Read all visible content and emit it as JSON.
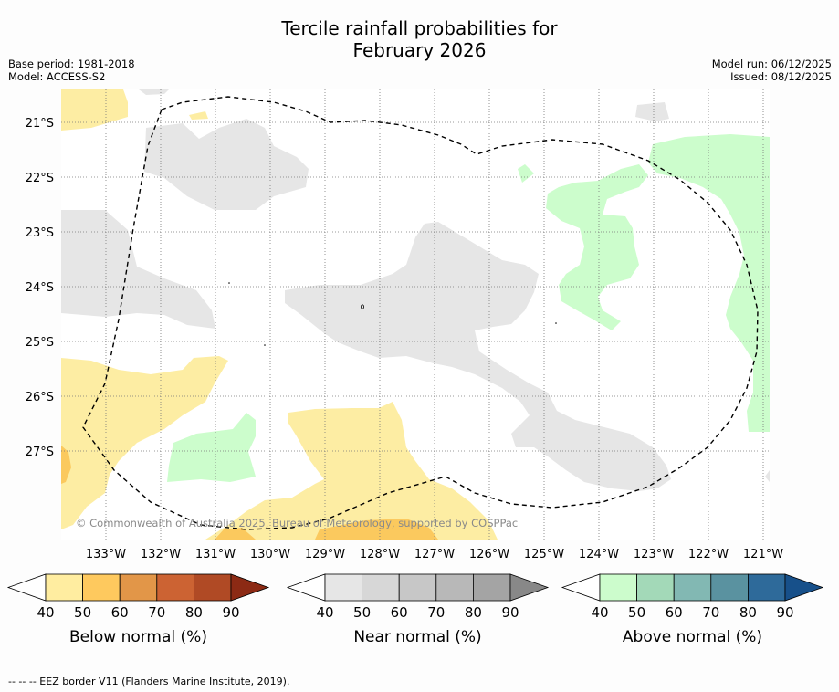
{
  "header": {
    "title_line1": "Tercile rainfall probabilities for",
    "title_line2": "February 2026",
    "base_period": "Base period: 1981-2018",
    "model": "Model: ACCESS-S2",
    "model_run": "Model run: 06/12/2025",
    "issued": "Issued: 08/12/2025"
  },
  "map": {
    "copyright": "© Commonwealth of Australia 2025, Bureau of Meteorology, supported by COSPPac",
    "lat_labels": [
      "21°S",
      "22°S",
      "23°S",
      "24°S",
      "25°S",
      "26°S",
      "27°S"
    ],
    "lon_labels": [
      "133°W",
      "132°W",
      "131°W",
      "130°W",
      "129°W",
      "128°W",
      "127°W",
      "126°W",
      "125°W",
      "124°W",
      "123°W",
      "122°W",
      "121°W"
    ],
    "colors": {
      "below": "#fdeda3",
      "below_dark": "#fbc95e",
      "near": "#e6e6e6",
      "above": "#ccfdcc",
      "eez": "#000000"
    }
  },
  "colorbars": [
    {
      "label": "Below normal (%)",
      "ticks": [
        "40",
        "50",
        "60",
        "70",
        "80",
        "90"
      ],
      "colors": [
        "#ffffff",
        "#ffeda0",
        "#fec95e",
        "#e29648",
        "#cc6333",
        "#b04a25",
        "#8c2a14"
      ]
    },
    {
      "label": "Near normal (%)",
      "ticks": [
        "40",
        "50",
        "60",
        "70",
        "80",
        "90"
      ],
      "colors": [
        "#ffffff",
        "#e6e6e6",
        "#d7d7d7",
        "#c7c7c7",
        "#b8b8b8",
        "#a4a4a4",
        "#888888"
      ]
    },
    {
      "label": "Above normal (%)",
      "ticks": [
        "40",
        "50",
        "60",
        "70",
        "80",
        "90"
      ],
      "colors": [
        "#ffffff",
        "#ccfccc",
        "#a3d9b8",
        "#82b8b3",
        "#5a92a0",
        "#2e6a9a",
        "#17508a"
      ]
    }
  ],
  "footnote": "--  --  -- EEZ border V11 (Flanders Marine Institute, 2019)."
}
